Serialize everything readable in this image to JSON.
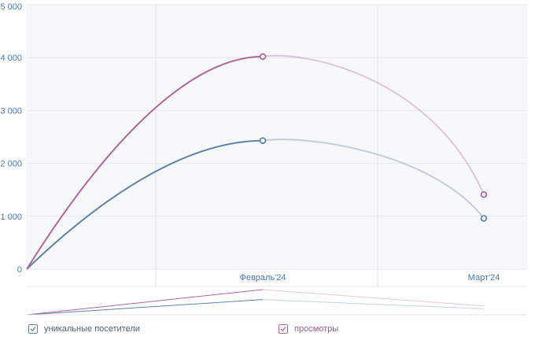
{
  "chart_data": {
    "type": "line",
    "categories": [
      "",
      "Февраль'24",
      "Март'24"
    ],
    "y_ticks": [
      "0",
      "1 000",
      "2 000",
      "3 000",
      "4 000",
      "5 000"
    ],
    "ylim": [
      0,
      5000
    ],
    "grid": true,
    "series": [
      {
        "name": "уникальные посетители",
        "color": "#5f82a8",
        "values": [
          0,
          2430,
          960
        ]
      },
      {
        "name": "просмотры",
        "color": "#b0669c",
        "values": [
          0,
          4020,
          1410
        ]
      }
    ],
    "legend_position": "bottom"
  },
  "legend": {
    "items": [
      {
        "label": "уникальные посетители",
        "color": "#5f82a8"
      },
      {
        "label": "просмотры",
        "color": "#b0669c"
      }
    ]
  }
}
